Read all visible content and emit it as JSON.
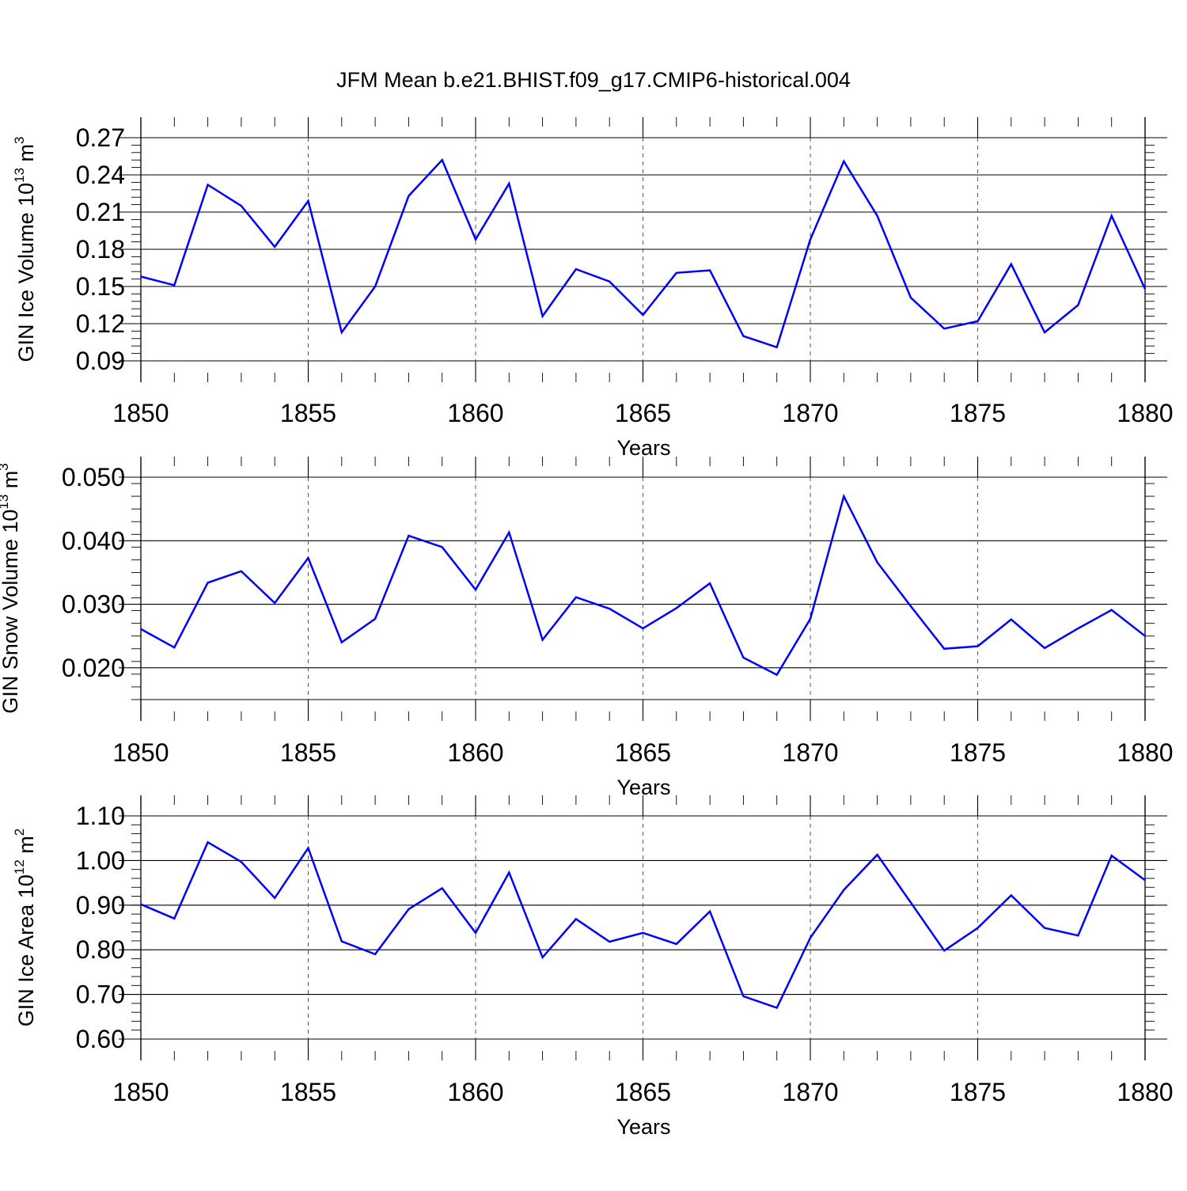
{
  "title": "JFM Mean b.e21.BHIST.f09_g17.CMIP6-historical.004",
  "line_color": "#0000ff",
  "chart_data": [
    {
      "type": "line",
      "ylabel": {
        "main": "GIN Ice Volume 10",
        "sup": "13",
        "unit": " m",
        "unit_sup": "3"
      },
      "xlabel": "Years",
      "xlim": [
        1850,
        1880
      ],
      "ylim": [
        0.09,
        0.27
      ],
      "yticks": [
        "0.09",
        "0.12",
        "0.15",
        "0.18",
        "0.21",
        "0.24",
        "0.27"
      ],
      "xticks": [
        "1850",
        "1855",
        "1860",
        "1865",
        "1870",
        "1875",
        "1880"
      ],
      "grid": "dashed vertical at major x ticks",
      "x": [
        1850,
        1851,
        1852,
        1853,
        1854,
        1855,
        1856,
        1857,
        1858,
        1859,
        1860,
        1861,
        1862,
        1863,
        1864,
        1865,
        1866,
        1867,
        1868,
        1869,
        1870,
        1871,
        1872,
        1873,
        1874,
        1875,
        1876,
        1877,
        1878,
        1879,
        1880
      ],
      "values": [
        0.158,
        0.151,
        0.232,
        0.215,
        0.182,
        0.219,
        0.113,
        0.15,
        0.223,
        0.252,
        0.188,
        0.233,
        0.126,
        0.164,
        0.154,
        0.127,
        0.161,
        0.163,
        0.11,
        0.101,
        0.188,
        0.251,
        0.207,
        0.141,
        0.116,
        0.122,
        0.168,
        0.113,
        0.135,
        0.207,
        0.148
      ]
    },
    {
      "type": "line",
      "ylabel": {
        "main": "GIN Snow Volume 10",
        "sup": "13",
        "unit": " m",
        "unit_sup": "3"
      },
      "xlabel": "Years",
      "xlim": [
        1850,
        1880
      ],
      "ylim": [
        0.015,
        0.05
      ],
      "yticks": [
        "0.020",
        "0.030",
        "0.040",
        "0.050"
      ],
      "xticks": [
        "1850",
        "1855",
        "1860",
        "1865",
        "1870",
        "1875",
        "1880"
      ],
      "grid": "dashed vertical at major x ticks",
      "x": [
        1850,
        1851,
        1852,
        1853,
        1854,
        1855,
        1856,
        1857,
        1858,
        1859,
        1860,
        1861,
        1862,
        1863,
        1864,
        1865,
        1866,
        1867,
        1868,
        1869,
        1870,
        1871,
        1872,
        1873,
        1874,
        1875,
        1876,
        1877,
        1878,
        1879,
        1880
      ],
      "values": [
        0.0261,
        0.0232,
        0.0334,
        0.0352,
        0.0302,
        0.0373,
        0.024,
        0.0277,
        0.0408,
        0.039,
        0.0323,
        0.0413,
        0.0244,
        0.0311,
        0.0293,
        0.0262,
        0.0294,
        0.0333,
        0.0216,
        0.0189,
        0.0277,
        0.047,
        0.0366,
        0.0297,
        0.023,
        0.0234,
        0.0276,
        0.0231,
        0.0262,
        0.0291,
        0.025
      ]
    },
    {
      "type": "line",
      "ylabel": {
        "main": "GIN Ice Area 10",
        "sup": "12",
        "unit": " m",
        "unit_sup": "2"
      },
      "xlabel": "Years",
      "xlim": [
        1850,
        1880
      ],
      "ylim": [
        0.6,
        1.1
      ],
      "yticks": [
        "0.60",
        "0.70",
        "0.80",
        "0.90",
        "1.00",
        "1.10"
      ],
      "xticks": [
        "1850",
        "1855",
        "1860",
        "1865",
        "1870",
        "1875",
        "1880"
      ],
      "grid": "dashed vertical at major x ticks",
      "x": [
        1850,
        1851,
        1852,
        1853,
        1854,
        1855,
        1856,
        1857,
        1858,
        1859,
        1860,
        1861,
        1862,
        1863,
        1864,
        1865,
        1866,
        1867,
        1868,
        1869,
        1870,
        1871,
        1872,
        1873,
        1874,
        1875,
        1876,
        1877,
        1878,
        1879,
        1880
      ],
      "values": [
        0.902,
        0.87,
        1.041,
        0.997,
        0.916,
        1.028,
        0.819,
        0.79,
        0.891,
        0.938,
        0.838,
        0.973,
        0.783,
        0.869,
        0.818,
        0.838,
        0.813,
        0.886,
        0.696,
        0.67,
        0.827,
        0.934,
        1.013,
        0.906,
        0.798,
        0.849,
        0.922,
        0.849,
        0.832,
        1.011,
        0.956
      ]
    }
  ]
}
